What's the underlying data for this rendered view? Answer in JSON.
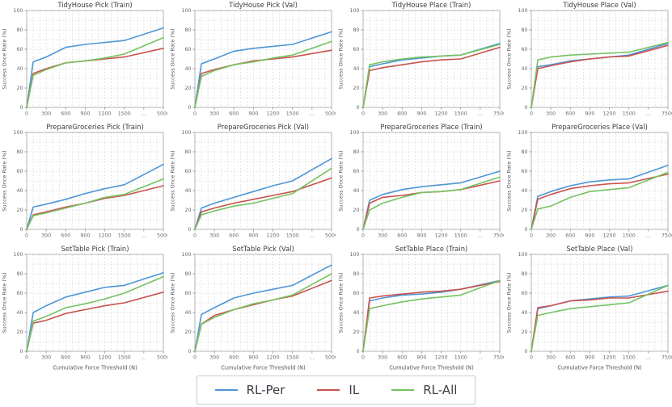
{
  "colors": {
    "series": {
      "RL-Per": "#4d96d6",
      "IL": "#c9524e",
      "RL-All": "#76c261"
    },
    "grid_line": "#dcdcdc",
    "spine": "#b3b3b3",
    "title_text": "#3c3c3c",
    "tick_text": "#666666",
    "axis_label_text": "#555555",
    "legend_text": "#3a3f46",
    "legend_border": "#cccccc"
  },
  "legend": {
    "entries": [
      {
        "label": "RL-Per",
        "color_key": "RL-Per"
      },
      {
        "label": "IL",
        "color_key": "IL"
      },
      {
        "label": "RL-All",
        "color_key": "RL-All"
      }
    ]
  },
  "chart_data": [
    {
      "type": "line",
      "title": "TidyHouse Pick (Train)",
      "ylabel": "Success Once Rate (%)",
      "xlabel": "",
      "ylim": [
        0,
        100
      ],
      "yticks": [
        0,
        20,
        40,
        60,
        80,
        100
      ],
      "x_thresholds": [
        0,
        100,
        300,
        600,
        900,
        1200,
        1500,
        5000
      ],
      "x_tick_labels": [
        "0",
        "300",
        "600",
        "900",
        "1200",
        "1500",
        "...",
        "5000"
      ],
      "series": [
        {
          "name": "RL-Per",
          "values": [
            0,
            47,
            52,
            62,
            65,
            67,
            69,
            82
          ]
        },
        {
          "name": "IL",
          "values": [
            0,
            35,
            40,
            46,
            48,
            50,
            52,
            61
          ]
        },
        {
          "name": "RL-All",
          "values": [
            0,
            33,
            39,
            46,
            48,
            51,
            55,
            72
          ]
        }
      ]
    },
    {
      "type": "line",
      "title": "TidyHouse Pick (Val)",
      "ylabel": "Success Once Rate (%)",
      "xlabel": "",
      "ylim": [
        0,
        100
      ],
      "yticks": [
        0,
        20,
        40,
        60,
        80,
        100
      ],
      "x_thresholds": [
        0,
        100,
        300,
        600,
        900,
        1200,
        1500,
        5000
      ],
      "x_tick_labels": [
        "0",
        "300",
        "600",
        "900",
        "1200",
        "1500",
        "...",
        "5000"
      ],
      "series": [
        {
          "name": "RL-Per",
          "values": [
            0,
            45,
            50,
            58,
            61,
            63,
            65,
            78
          ]
        },
        {
          "name": "IL",
          "values": [
            0,
            35,
            39,
            44,
            48,
            50,
            52,
            59
          ]
        },
        {
          "name": "RL-All",
          "values": [
            0,
            32,
            38,
            44,
            47,
            51,
            54,
            68
          ]
        }
      ]
    },
    {
      "type": "line",
      "title": "TidyHouse Place (Train)",
      "ylabel": "Success Once Rate (%)",
      "xlabel": "",
      "ylim": [
        0,
        100
      ],
      "yticks": [
        0,
        20,
        40,
        60,
        80,
        100
      ],
      "x_thresholds": [
        0,
        100,
        300,
        600,
        900,
        1200,
        1500,
        7500
      ],
      "x_tick_labels": [
        "0",
        "300",
        "600",
        "900",
        "1200",
        "1500",
        "...",
        "7500"
      ],
      "series": [
        {
          "name": "RL-Per",
          "values": [
            0,
            42,
            45,
            49,
            51,
            53,
            54,
            66
          ]
        },
        {
          "name": "IL",
          "values": [
            0,
            38,
            41,
            44,
            47,
            49,
            50,
            62
          ]
        },
        {
          "name": "RL-All",
          "values": [
            0,
            44,
            47,
            50,
            52,
            53,
            54,
            65
          ]
        }
      ]
    },
    {
      "type": "line",
      "title": "TidyHouse Place (Val)",
      "ylabel": "Success Once Rate (%)",
      "xlabel": "",
      "ylim": [
        0,
        100
      ],
      "yticks": [
        0,
        20,
        40,
        60,
        80,
        100
      ],
      "x_thresholds": [
        0,
        100,
        300,
        600,
        900,
        1200,
        1500,
        7500
      ],
      "x_tick_labels": [
        "0",
        "300",
        "600",
        "900",
        "1200",
        "1500",
        "...",
        "7500"
      ],
      "series": [
        {
          "name": "RL-Per",
          "values": [
            0,
            42,
            44,
            48,
            50,
            52,
            54,
            66
          ]
        },
        {
          "name": "IL",
          "values": [
            0,
            40,
            43,
            47,
            50,
            52,
            53,
            64
          ]
        },
        {
          "name": "RL-All",
          "values": [
            0,
            49,
            52,
            54,
            55,
            56,
            57,
            67
          ]
        }
      ]
    },
    {
      "type": "line",
      "title": "PrepareGroceries Pick (Train)",
      "ylabel": "Success Once Rate (%)",
      "xlabel": "",
      "ylim": [
        0,
        100
      ],
      "yticks": [
        0,
        20,
        40,
        60,
        80,
        100
      ],
      "x_thresholds": [
        0,
        100,
        300,
        600,
        900,
        1200,
        1500,
        5000
      ],
      "x_tick_labels": [
        "0",
        "300",
        "600",
        "900",
        "1200",
        "1500",
        "...",
        "5000"
      ],
      "series": [
        {
          "name": "RL-Per",
          "values": [
            0,
            23,
            26,
            31,
            37,
            42,
            46,
            67
          ]
        },
        {
          "name": "IL",
          "values": [
            0,
            15,
            18,
            23,
            27,
            32,
            35,
            45
          ]
        },
        {
          "name": "RL-All",
          "values": [
            0,
            14,
            17,
            22,
            27,
            33,
            36,
            52
          ]
        }
      ]
    },
    {
      "type": "line",
      "title": "PrepareGroceries Pick (Val)",
      "ylabel": "Success Once Rate (%)",
      "xlabel": "",
      "ylim": [
        0,
        100
      ],
      "yticks": [
        0,
        20,
        40,
        60,
        80,
        100
      ],
      "x_thresholds": [
        0,
        100,
        300,
        600,
        900,
        1200,
        1500,
        5000
      ],
      "x_tick_labels": [
        "0",
        "300",
        "600",
        "900",
        "1200",
        "1500",
        "...",
        "5000"
      ],
      "series": [
        {
          "name": "RL-Per",
          "values": [
            0,
            22,
            27,
            33,
            39,
            45,
            50,
            73
          ]
        },
        {
          "name": "IL",
          "values": [
            0,
            18,
            22,
            27,
            31,
            35,
            39,
            53
          ]
        },
        {
          "name": "RL-All",
          "values": [
            0,
            15,
            19,
            24,
            27,
            32,
            37,
            63
          ]
        }
      ]
    },
    {
      "type": "line",
      "title": "PrepareGroceries Place (Train)",
      "ylabel": "Success Once Rate (%)",
      "xlabel": "",
      "ylim": [
        0,
        100
      ],
      "yticks": [
        0,
        20,
        40,
        60,
        80,
        100
      ],
      "x_thresholds": [
        0,
        100,
        300,
        600,
        900,
        1200,
        1500,
        7500
      ],
      "x_tick_labels": [
        "0",
        "300",
        "600",
        "900",
        "1200",
        "1500",
        "...",
        "7500"
      ],
      "series": [
        {
          "name": "RL-Per",
          "values": [
            0,
            30,
            36,
            41,
            44,
            46,
            48,
            60
          ]
        },
        {
          "name": "IL",
          "values": [
            0,
            27,
            33,
            35,
            38,
            39,
            41,
            50
          ]
        },
        {
          "name": "RL-All",
          "values": [
            0,
            20,
            27,
            33,
            38,
            39,
            41,
            54
          ]
        }
      ]
    },
    {
      "type": "line",
      "title": "PrepareGroceries Place (Val)",
      "ylabel": "Success Once Rate (%)",
      "xlabel": "",
      "ylim": [
        0,
        100
      ],
      "yticks": [
        0,
        20,
        40,
        60,
        80,
        100
      ],
      "x_thresholds": [
        0,
        100,
        300,
        600,
        900,
        1200,
        1500,
        7500
      ],
      "x_tick_labels": [
        "0",
        "300",
        "600",
        "900",
        "1200",
        "1500",
        "...",
        "7500"
      ],
      "series": [
        {
          "name": "RL-Per",
          "values": [
            0,
            34,
            39,
            45,
            49,
            51,
            52,
            66
          ]
        },
        {
          "name": "IL",
          "values": [
            0,
            31,
            36,
            42,
            45,
            47,
            48,
            57
          ]
        },
        {
          "name": "RL-All",
          "values": [
            0,
            21,
            24,
            33,
            39,
            41,
            43,
            59
          ]
        }
      ]
    },
    {
      "type": "line",
      "title": "SetTable Pick (Train)",
      "ylabel": "Success Once Rate (%)",
      "xlabel": "Cumulative Force Threshold (N)",
      "ylim": [
        0,
        100
      ],
      "yticks": [
        0,
        20,
        40,
        60,
        80,
        100
      ],
      "x_thresholds": [
        0,
        100,
        300,
        600,
        900,
        1200,
        1500,
        5000
      ],
      "x_tick_labels": [
        "0",
        "300",
        "600",
        "900",
        "1200",
        "1500",
        "...",
        "5000"
      ],
      "series": [
        {
          "name": "RL-Per",
          "values": [
            0,
            40,
            47,
            56,
            61,
            66,
            68,
            81
          ]
        },
        {
          "name": "IL",
          "values": [
            0,
            29,
            32,
            39,
            43,
            47,
            50,
            61
          ]
        },
        {
          "name": "RL-All",
          "values": [
            0,
            31,
            36,
            45,
            49,
            54,
            60,
            77
          ]
        }
      ]
    },
    {
      "type": "line",
      "title": "SetTable Pick (Val)",
      "ylabel": "Success Once Rate (%)",
      "xlabel": "Cumulative Force Threshold (N)",
      "ylim": [
        0,
        100
      ],
      "yticks": [
        0,
        20,
        40,
        60,
        80,
        100
      ],
      "x_thresholds": [
        0,
        100,
        300,
        600,
        900,
        1200,
        1500,
        5000
      ],
      "x_tick_labels": [
        "0",
        "300",
        "600",
        "900",
        "1200",
        "1500",
        "...",
        "5000"
      ],
      "series": [
        {
          "name": "RL-Per",
          "values": [
            0,
            38,
            45,
            55,
            60,
            64,
            68,
            89
          ]
        },
        {
          "name": "IL",
          "values": [
            0,
            28,
            37,
            43,
            48,
            53,
            57,
            73
          ]
        },
        {
          "name": "RL-All",
          "values": [
            0,
            28,
            35,
            43,
            49,
            53,
            58,
            80
          ]
        }
      ]
    },
    {
      "type": "line",
      "title": "SetTable Place (Train)",
      "ylabel": "Success Once Rate (%)",
      "xlabel": "Cumulative Force Threshold (N)",
      "ylim": [
        0,
        100
      ],
      "yticks": [
        0,
        20,
        40,
        60,
        80,
        100
      ],
      "x_thresholds": [
        0,
        100,
        300,
        600,
        900,
        1200,
        1500,
        7500
      ],
      "x_tick_labels": [
        "0",
        "300",
        "600",
        "900",
        "1200",
        "1500",
        "...",
        "7500"
      ],
      "series": [
        {
          "name": "RL-Per",
          "values": [
            0,
            52,
            55,
            58,
            59,
            61,
            64,
            73
          ]
        },
        {
          "name": "IL",
          "values": [
            0,
            55,
            57,
            59,
            61,
            62,
            64,
            72
          ]
        },
        {
          "name": "RL-All",
          "values": [
            0,
            44,
            47,
            51,
            54,
            56,
            58,
            73
          ]
        }
      ]
    },
    {
      "type": "line",
      "title": "SetTable Place (Val)",
      "ylabel": "Success Once Rate (%)",
      "xlabel": "Cumulative Force Threshold (N)",
      "ylim": [
        0,
        100
      ],
      "yticks": [
        0,
        20,
        40,
        60,
        80,
        100
      ],
      "x_thresholds": [
        0,
        100,
        300,
        600,
        900,
        1200,
        1500,
        7500
      ],
      "x_tick_labels": [
        "0",
        "300",
        "600",
        "900",
        "1200",
        "1500",
        "...",
        "7500"
      ],
      "series": [
        {
          "name": "RL-Per",
          "values": [
            0,
            44,
            47,
            52,
            54,
            56,
            57,
            68
          ]
        },
        {
          "name": "IL",
          "values": [
            0,
            45,
            47,
            52,
            53,
            55,
            55,
            62
          ]
        },
        {
          "name": "RL-All",
          "values": [
            0,
            37,
            40,
            44,
            46,
            48,
            50,
            68
          ]
        }
      ]
    }
  ]
}
